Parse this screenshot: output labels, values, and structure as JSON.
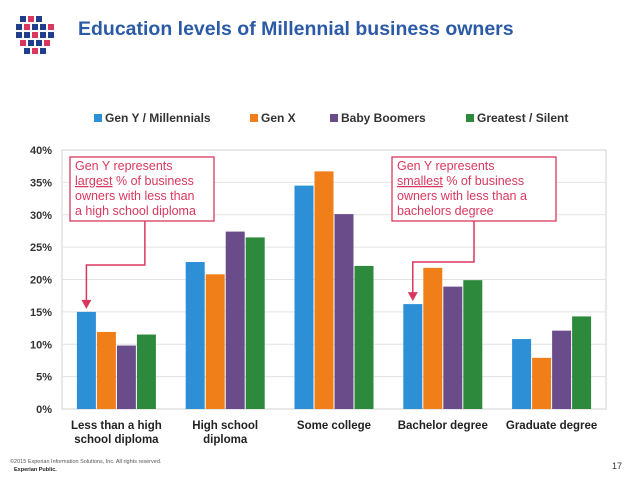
{
  "slide": {
    "title": "Education levels of Millennial business owners",
    "footer_copyright": "©2015 Experian Information Solutions, Inc. All rights reserved.",
    "footer_classification": "Experian Public.",
    "page_number": "17",
    "logo_icon": "experian-dot-grid-icon"
  },
  "colors": {
    "title": "#2b5aa6",
    "series": [
      "#2d8fd6",
      "#f07f1a",
      "#6b4c8a",
      "#2d8a3c"
    ],
    "annotation_border": "#d9385e",
    "annotation_text": "#d9385e",
    "logo_blue": "#1f3f8a",
    "logo_red": "#d9385e"
  },
  "chart_data": {
    "type": "bar",
    "categories": [
      [
        "Less than a high",
        "school diploma"
      ],
      [
        "High school",
        "diploma"
      ],
      [
        "Some college"
      ],
      [
        "Bachelor degree"
      ],
      [
        "Graduate degree"
      ]
    ],
    "series": [
      {
        "name": "Gen Y / Millennials",
        "values": [
          15.0,
          22.7,
          34.5,
          16.2,
          10.8
        ]
      },
      {
        "name": "Gen X",
        "values": [
          11.9,
          20.8,
          36.7,
          21.8,
          7.9
        ]
      },
      {
        "name": "Baby Boomers",
        "values": [
          9.8,
          27.4,
          30.1,
          18.9,
          12.1
        ]
      },
      {
        "name": "Greatest / Silent",
        "values": [
          11.5,
          26.5,
          22.1,
          19.9,
          14.3
        ]
      }
    ],
    "ylim": [
      0,
      40
    ],
    "yticks": [
      "0%",
      "5%",
      "10%",
      "15%",
      "20%",
      "25%",
      "30%",
      "35%",
      "40%"
    ],
    "grid": true,
    "legend_position": "top",
    "annotations": [
      {
        "lines": [
          "Gen Y represents",
          "largest % of business",
          "owners with less than",
          "a high school diploma"
        ],
        "underline": "largest",
        "target_category": 0
      },
      {
        "lines": [
          "Gen Y represents",
          "smallest % of business",
          "owners with less than a",
          "bachelors degree"
        ],
        "underline": "smallest",
        "target_category": 3
      }
    ]
  }
}
